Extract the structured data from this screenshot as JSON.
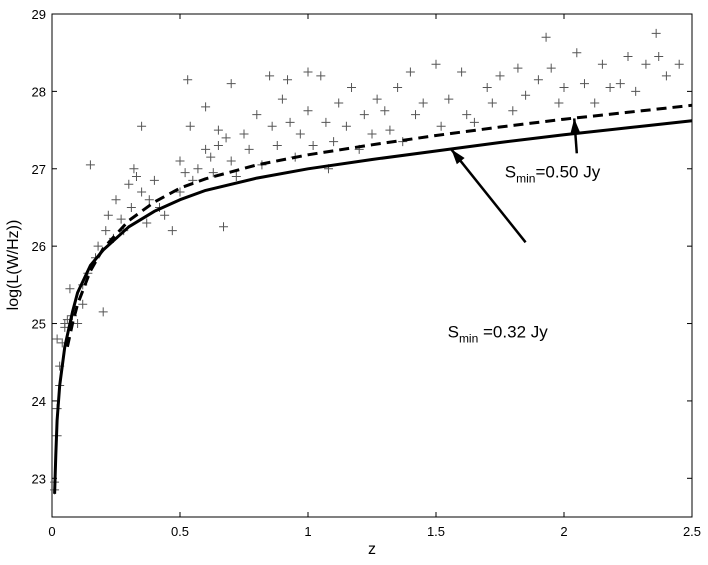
{
  "chart_data": {
    "type": "scatter",
    "xlabel": "z",
    "ylabel": "log(L(W/Hz))",
    "xlim": [
      0,
      2.5
    ],
    "ylim": [
      22.5,
      29
    ],
    "xticks": [
      "0",
      "0.5",
      "1",
      "1.5",
      "2",
      "2.5"
    ],
    "yticks": [
      "23",
      "24",
      "25",
      "26",
      "27",
      "28",
      "29"
    ],
    "xtick_values": [
      0,
      0.5,
      1,
      1.5,
      2,
      2.5
    ],
    "ytick_values": [
      23,
      24,
      25,
      26,
      27,
      28,
      29
    ],
    "grid": false,
    "series": [
      {
        "marker": "plus",
        "color": "#555555",
        "points": [
          [
            0.01,
            22.85
          ],
          [
            0.01,
            22.95
          ],
          [
            0.02,
            23.55
          ],
          [
            0.02,
            23.9
          ],
          [
            0.03,
            24.2
          ],
          [
            0.03,
            24.45
          ],
          [
            0.02,
            24.8
          ],
          [
            0.04,
            24.75
          ],
          [
            0.05,
            25.0
          ],
          [
            0.05,
            24.95
          ],
          [
            0.06,
            25.05
          ],
          [
            0.07,
            25.45
          ],
          [
            0.08,
            25.1
          ],
          [
            0.1,
            25.0
          ],
          [
            0.12,
            25.25
          ],
          [
            0.12,
            25.5
          ],
          [
            0.14,
            25.65
          ],
          [
            0.15,
            27.05
          ],
          [
            0.17,
            25.85
          ],
          [
            0.18,
            26.0
          ],
          [
            0.2,
            25.15
          ],
          [
            0.21,
            26.2
          ],
          [
            0.22,
            26.4
          ],
          [
            0.24,
            26.1
          ],
          [
            0.25,
            26.6
          ],
          [
            0.27,
            26.35
          ],
          [
            0.28,
            26.2
          ],
          [
            0.3,
            26.8
          ],
          [
            0.31,
            26.5
          ],
          [
            0.32,
            27.0
          ],
          [
            0.33,
            26.9
          ],
          [
            0.35,
            27.55
          ],
          [
            0.35,
            26.7
          ],
          [
            0.37,
            26.3
          ],
          [
            0.38,
            26.6
          ],
          [
            0.4,
            26.85
          ],
          [
            0.42,
            26.5
          ],
          [
            0.44,
            26.4
          ],
          [
            0.47,
            26.2
          ],
          [
            0.5,
            27.1
          ],
          [
            0.5,
            26.7
          ],
          [
            0.52,
            26.95
          ],
          [
            0.53,
            28.15
          ],
          [
            0.54,
            27.55
          ],
          [
            0.55,
            26.85
          ],
          [
            0.57,
            27.0
          ],
          [
            0.6,
            27.8
          ],
          [
            0.6,
            27.25
          ],
          [
            0.62,
            27.15
          ],
          [
            0.63,
            26.95
          ],
          [
            0.65,
            27.5
          ],
          [
            0.65,
            27.3
          ],
          [
            0.67,
            26.25
          ],
          [
            0.68,
            27.4
          ],
          [
            0.7,
            27.1
          ],
          [
            0.7,
            28.1
          ],
          [
            0.72,
            26.9
          ],
          [
            0.75,
            27.45
          ],
          [
            0.77,
            27.25
          ],
          [
            0.8,
            27.7
          ],
          [
            0.82,
            27.05
          ],
          [
            0.85,
            28.2
          ],
          [
            0.86,
            27.55
          ],
          [
            0.88,
            27.3
          ],
          [
            0.9,
            27.9
          ],
          [
            0.92,
            28.15
          ],
          [
            0.93,
            27.6
          ],
          [
            0.95,
            27.15
          ],
          [
            0.97,
            27.45
          ],
          [
            1.0,
            28.25
          ],
          [
            1.0,
            27.75
          ],
          [
            1.02,
            27.3
          ],
          [
            1.05,
            28.2
          ],
          [
            1.07,
            27.6
          ],
          [
            1.08,
            27.0
          ],
          [
            1.1,
            27.35
          ],
          [
            1.12,
            27.85
          ],
          [
            1.15,
            27.55
          ],
          [
            1.17,
            28.05
          ],
          [
            1.2,
            27.25
          ],
          [
            1.22,
            27.7
          ],
          [
            1.25,
            27.45
          ],
          [
            1.27,
            27.9
          ],
          [
            1.3,
            27.75
          ],
          [
            1.32,
            27.5
          ],
          [
            1.35,
            28.05
          ],
          [
            1.37,
            27.35
          ],
          [
            1.4,
            28.25
          ],
          [
            1.42,
            27.7
          ],
          [
            1.45,
            27.85
          ],
          [
            1.5,
            28.35
          ],
          [
            1.52,
            27.55
          ],
          [
            1.55,
            27.9
          ],
          [
            1.6,
            28.25
          ],
          [
            1.62,
            27.7
          ],
          [
            1.65,
            27.6
          ],
          [
            1.7,
            28.05
          ],
          [
            1.72,
            27.85
          ],
          [
            1.75,
            28.2
          ],
          [
            1.8,
            27.75
          ],
          [
            1.82,
            28.3
          ],
          [
            1.85,
            27.95
          ],
          [
            1.9,
            28.15
          ],
          [
            1.93,
            28.7
          ],
          [
            1.95,
            28.3
          ],
          [
            1.98,
            27.85
          ],
          [
            2.0,
            28.05
          ],
          [
            2.05,
            28.5
          ],
          [
            2.08,
            28.1
          ],
          [
            2.12,
            27.85
          ],
          [
            2.15,
            28.35
          ],
          [
            2.18,
            28.05
          ],
          [
            2.22,
            28.1
          ],
          [
            2.25,
            28.45
          ],
          [
            2.28,
            28.0
          ],
          [
            2.32,
            28.35
          ],
          [
            2.36,
            28.75
          ],
          [
            2.37,
            28.45
          ],
          [
            2.4,
            28.2
          ],
          [
            2.45,
            28.35
          ]
        ]
      },
      {
        "type": "line",
        "style": "solid",
        "points": [
          [
            0.01,
            22.8
          ],
          [
            0.015,
            23.3
          ],
          [
            0.02,
            23.75
          ],
          [
            0.03,
            24.2
          ],
          [
            0.05,
            24.7
          ],
          [
            0.08,
            25.15
          ],
          [
            0.1,
            25.4
          ],
          [
            0.15,
            25.75
          ],
          [
            0.2,
            25.95
          ],
          [
            0.3,
            26.25
          ],
          [
            0.4,
            26.45
          ],
          [
            0.5,
            26.6
          ],
          [
            0.6,
            26.72
          ],
          [
            0.8,
            26.88
          ],
          [
            1.0,
            27.0
          ],
          [
            1.25,
            27.12
          ],
          [
            1.5,
            27.23
          ],
          [
            1.75,
            27.34
          ],
          [
            2.0,
            27.44
          ],
          [
            2.25,
            27.53
          ],
          [
            2.5,
            27.62
          ]
        ]
      },
      {
        "type": "line",
        "style": "dashed",
        "points": [
          [
            0.06,
            24.7
          ],
          [
            0.08,
            25.0
          ],
          [
            0.1,
            25.25
          ],
          [
            0.15,
            25.68
          ],
          [
            0.2,
            25.97
          ],
          [
            0.3,
            26.33
          ],
          [
            0.4,
            26.57
          ],
          [
            0.5,
            26.75
          ],
          [
            0.6,
            26.87
          ],
          [
            0.8,
            27.05
          ],
          [
            1.0,
            27.18
          ],
          [
            1.25,
            27.31
          ],
          [
            1.5,
            27.43
          ],
          [
            1.75,
            27.54
          ],
          [
            2.0,
            27.64
          ],
          [
            2.25,
            27.73
          ],
          [
            2.5,
            27.82
          ]
        ]
      }
    ],
    "annotations": [
      {
        "label_main": "S",
        "label_sub": "min",
        "label_rest": "=0.50 Jy",
        "target": [
          2.04,
          27.65
        ],
        "tail": [
          2.05,
          27.2
        ]
      },
      {
        "label_main": "S",
        "label_sub": "min",
        "label_rest": " =0.32 Jy",
        "target": [
          1.56,
          27.25
        ],
        "tail": [
          1.85,
          26.05
        ]
      }
    ]
  }
}
